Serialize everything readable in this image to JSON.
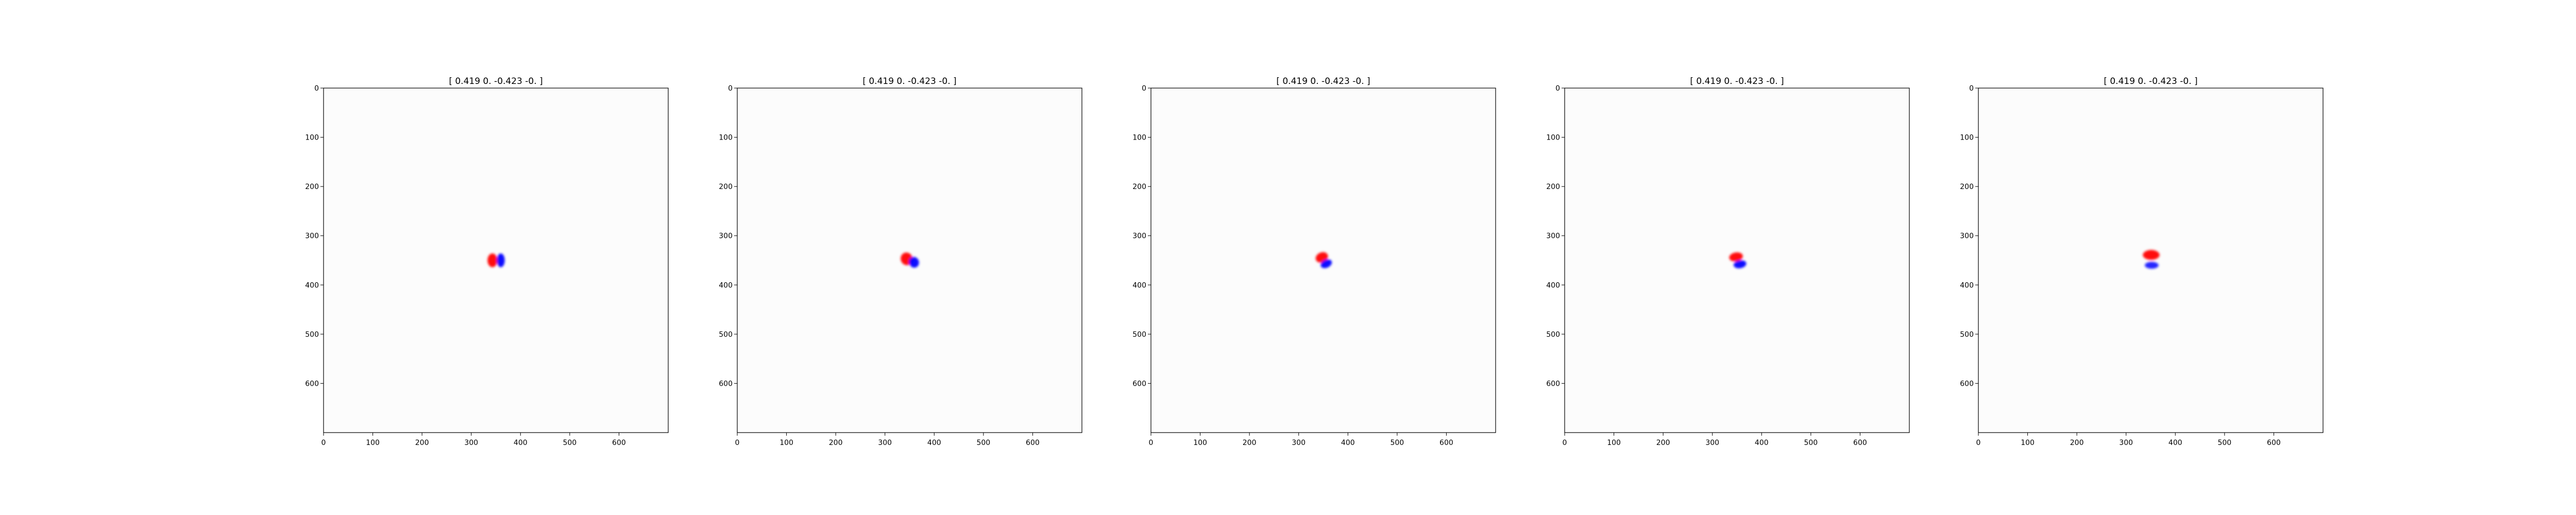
{
  "chart_data": [
    {
      "type": "heatmap",
      "title": "[ 0.419  0.    -0.423 -0.   ]",
      "xlabel": "",
      "ylabel": "",
      "xlim": [
        0,
        700
      ],
      "ylim": [
        700,
        0
      ],
      "xticks": [
        0,
        100,
        200,
        300,
        400,
        500,
        600
      ],
      "yticks": [
        0,
        100,
        200,
        300,
        400,
        500,
        600
      ],
      "colormap": "bwr",
      "grid": false,
      "features": [
        {
          "color": "#ff0000",
          "x": 343,
          "y": 350,
          "rx": 10,
          "ry": 14,
          "angle": 0,
          "opacity": 0.95
        },
        {
          "color": "#0000ff",
          "x": 360,
          "y": 350,
          "rx": 8,
          "ry": 14,
          "angle": 0,
          "opacity": 0.95
        }
      ]
    },
    {
      "type": "heatmap",
      "title": "[ 0.419  0.    -0.423 -0.   ]",
      "xlabel": "",
      "ylabel": "",
      "xlim": [
        0,
        700
      ],
      "ylim": [
        700,
        0
      ],
      "xticks": [
        0,
        100,
        200,
        300,
        400,
        500,
        600
      ],
      "yticks": [
        0,
        100,
        200,
        300,
        400,
        500,
        600
      ],
      "colormap": "bwr",
      "grid": false,
      "features": [
        {
          "color": "#ff0000",
          "x": 344,
          "y": 347,
          "rx": 12,
          "ry": 13,
          "angle": -20,
          "opacity": 0.95
        },
        {
          "color": "#0000ff",
          "x": 359,
          "y": 354,
          "rx": 10,
          "ry": 11,
          "angle": -20,
          "opacity": 0.95
        }
      ]
    },
    {
      "type": "heatmap",
      "title": "[ 0.419  0.    -0.423 -0.   ]",
      "xlabel": "",
      "ylabel": "",
      "xlim": [
        0,
        700
      ],
      "ylim": [
        700,
        0
      ],
      "xticks": [
        0,
        100,
        200,
        300,
        400,
        500,
        600
      ],
      "yticks": [
        0,
        100,
        200,
        300,
        400,
        500,
        600
      ],
      "colormap": "bwr",
      "grid": false,
      "features": [
        {
          "color": "#ff0000",
          "x": 347,
          "y": 344,
          "rx": 13,
          "ry": 10,
          "angle": -25,
          "opacity": 0.95
        },
        {
          "color": "#0000ff",
          "x": 356,
          "y": 357,
          "rx": 12,
          "ry": 8,
          "angle": -25,
          "opacity": 0.95
        }
      ]
    },
    {
      "type": "heatmap",
      "title": "[ 0.419  0.    -0.423 -0.   ]",
      "xlabel": "",
      "ylabel": "",
      "xlim": [
        0,
        700
      ],
      "ylim": [
        700,
        0
      ],
      "xticks": [
        0,
        100,
        200,
        300,
        400,
        500,
        600
      ],
      "yticks": [
        0,
        100,
        200,
        300,
        400,
        500,
        600
      ],
      "colormap": "bwr",
      "grid": false,
      "features": [
        {
          "color": "#ff0000",
          "x": 348,
          "y": 343,
          "rx": 14,
          "ry": 9,
          "angle": -10,
          "opacity": 0.95
        },
        {
          "color": "#0000ff",
          "x": 356,
          "y": 358,
          "rx": 13,
          "ry": 8,
          "angle": -10,
          "opacity": 0.95
        }
      ]
    },
    {
      "type": "heatmap",
      "title": "[ 0.419  0.    -0.423 -0.   ]",
      "xlabel": "",
      "ylabel": "",
      "xlim": [
        0,
        700
      ],
      "ylim": [
        700,
        0
      ],
      "xticks": [
        0,
        100,
        200,
        300,
        400,
        500,
        600
      ],
      "yticks": [
        0,
        100,
        200,
        300,
        400,
        500,
        600
      ],
      "colormap": "bwr",
      "grid": false,
      "features": [
        {
          "color": "#ff0000",
          "x": 351,
          "y": 339,
          "rx": 17,
          "ry": 10,
          "angle": 0,
          "opacity": 0.95
        },
        {
          "color": "#0000ff",
          "x": 352,
          "y": 360,
          "rx": 14,
          "ry": 7,
          "angle": 0,
          "opacity": 0.85
        }
      ]
    }
  ]
}
